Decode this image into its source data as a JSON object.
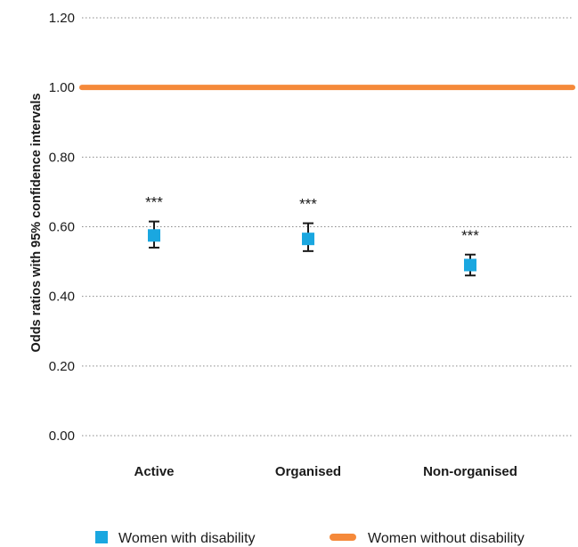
{
  "chart_data": {
    "type": "scatter",
    "title": "",
    "xlabel": "",
    "ylabel": "Odds ratios with 95% confidence intervals",
    "ylim": [
      0,
      1.2
    ],
    "yticks": [
      "0.00",
      "0.20",
      "0.40",
      "0.60",
      "0.80",
      "1.00",
      "1.20"
    ],
    "ytick_values": [
      0,
      0.2,
      0.4,
      0.6,
      0.8,
      1.0,
      1.2
    ],
    "grid": "horizontal dotted",
    "legend_position": "bottom",
    "categories": [
      "Active",
      "Organised",
      "Non-organised"
    ],
    "series": [
      {
        "name": "Women with disability",
        "marker": "square",
        "color": "#1aa7e0",
        "values": [
          0.575,
          0.565,
          0.49
        ],
        "ci_low": [
          0.54,
          0.53,
          0.46
        ],
        "ci_high": [
          0.615,
          0.61,
          0.52
        ],
        "significance": [
          "***",
          "***",
          "***"
        ]
      },
      {
        "name": "Women without disability",
        "marker": "reference-line",
        "color": "#f5893a",
        "value": 1.0
      }
    ]
  }
}
